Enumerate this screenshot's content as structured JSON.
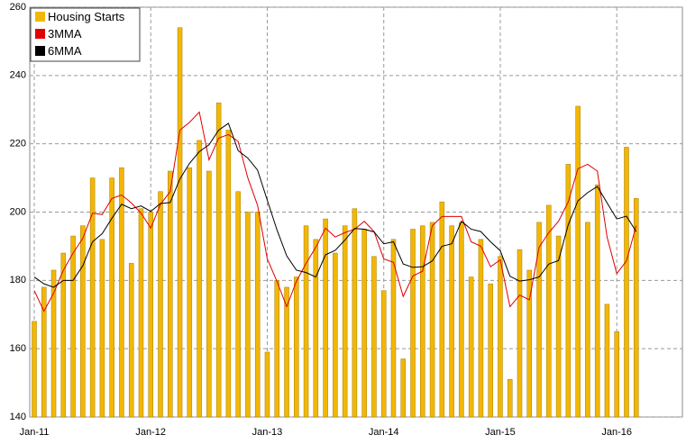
{
  "chart_data": {
    "type": "bar",
    "categories": [
      "Jan-11",
      null,
      null,
      null,
      null,
      null,
      null,
      null,
      null,
      null,
      null,
      null,
      "Jan-12",
      null,
      null,
      null,
      null,
      null,
      null,
      null,
      null,
      null,
      null,
      null,
      "Jan-13",
      null,
      null,
      null,
      null,
      null,
      null,
      null,
      null,
      null,
      null,
      null,
      "Jan-14",
      null,
      null,
      null,
      null,
      null,
      null,
      null,
      null,
      null,
      null,
      null,
      "Jan-15",
      null,
      null,
      null,
      null,
      null,
      null,
      null,
      null,
      null,
      null,
      null,
      "Jan-16",
      null,
      null
    ],
    "series": [
      {
        "name": "Housing Starts",
        "type": "bar",
        "color": "#f2b705",
        "values": [
          168,
          178,
          183,
          188,
          193,
          196,
          210,
          192,
          210,
          213,
          185,
          201,
          200,
          206,
          212,
          254,
          213,
          221,
          212,
          232,
          224,
          206,
          200,
          200,
          159,
          180,
          178,
          181,
          196,
          192,
          198,
          188,
          196,
          201,
          195,
          187,
          177,
          192,
          157,
          195,
          196,
          197,
          203,
          196,
          197,
          181,
          192,
          179,
          187,
          151,
          189,
          183,
          197,
          202,
          193,
          214,
          231,
          197,
          208,
          173,
          165,
          219,
          204
        ]
      },
      {
        "name": "3MMA",
        "type": "line",
        "color": "#e00000",
        "values": [
          177,
          171,
          176.3,
          183,
          188,
          192.3,
          199.7,
          199.3,
          204,
          205,
          202.7,
          199.7,
          195.3,
          202.3,
          206,
          224,
          226.3,
          229.3,
          215.3,
          221.7,
          222.7,
          220.7,
          210,
          202,
          186.3,
          179.7,
          172.3,
          179.7,
          185,
          189.7,
          195.3,
          192.7,
          194,
          195,
          197.3,
          194.3,
          186.3,
          185.3,
          175.3,
          181.3,
          182.7,
          196,
          198.7,
          198.7,
          198.7,
          191.3,
          190,
          184,
          186,
          172.3,
          175.7,
          174.3,
          189.7,
          194,
          197.3,
          203,
          212.7,
          214,
          212,
          192.7,
          182,
          185.7,
          196
        ]
      },
      {
        "name": "6MMA",
        "type": "line",
        "color": "#000000",
        "values": [
          181,
          179,
          178,
          180,
          180,
          184.3,
          191.3,
          193.7,
          198.2,
          202.3,
          201,
          201.8,
          200.2,
          202.5,
          202.8,
          209.7,
          214.3,
          217.7,
          219.7,
          224,
          226,
          218,
          215.8,
          212.3,
          203.5,
          194.8,
          187.2,
          183,
          182.3,
          181,
          187.5,
          188.8,
          191.8,
          195.2,
          195,
          194.2,
          190.7,
          191.3,
          184.8,
          183.8,
          184,
          185.7,
          190,
          190.7,
          197.3,
          195,
          194.3,
          191.3,
          188.7,
          181.2,
          179.8,
          180.2,
          181,
          184.8,
          185.8,
          196.3,
          203.3,
          205.7,
          207.5,
          202.7,
          198,
          198.8,
          194.3
        ]
      }
    ],
    "ylim": [
      140,
      260
    ],
    "yticks": [
      140,
      160,
      180,
      200,
      220,
      240,
      260
    ],
    "grid": true,
    "legend": "top-left"
  }
}
